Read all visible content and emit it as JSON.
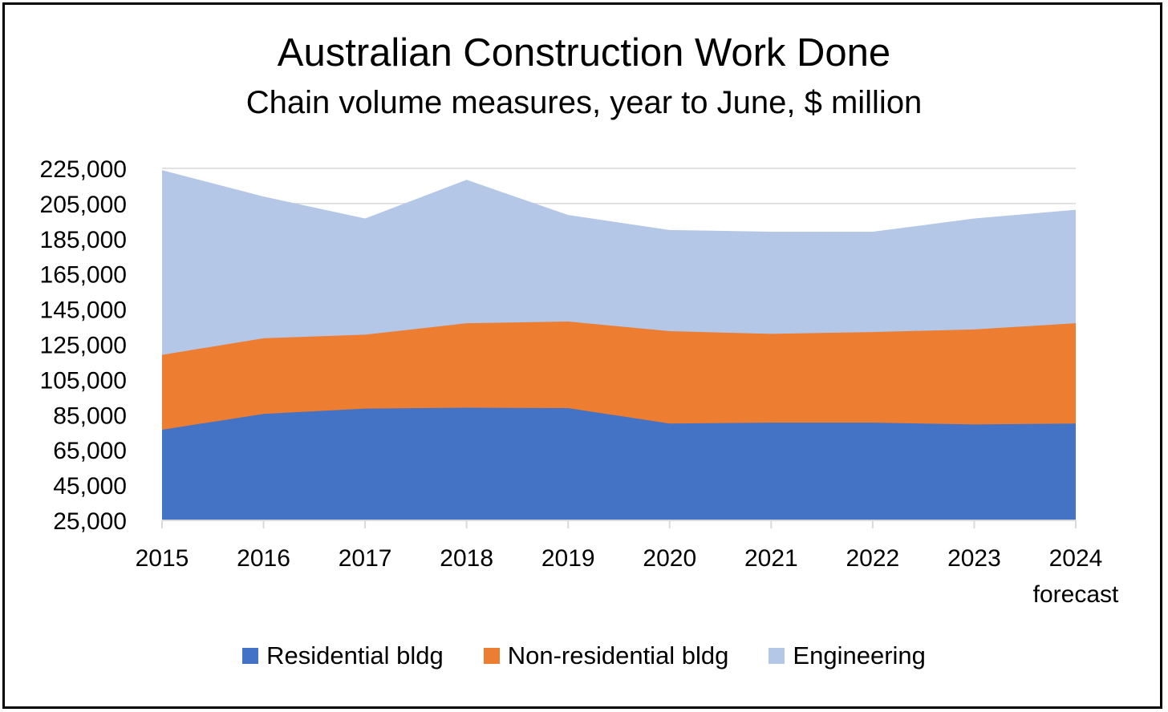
{
  "chart_data": {
    "type": "area",
    "stacked": true,
    "title": "Australian Construction Work Done",
    "subtitle": "Chain volume measures, year to June, $ million",
    "categories": [
      "2015",
      "2016",
      "2017",
      "2018",
      "2019",
      "2020",
      "2021",
      "2022",
      "2023",
      "2024"
    ],
    "category_sublabels": [
      "",
      "",
      "",
      "",
      "",
      "",
      "",
      "",
      "",
      "forecast"
    ],
    "y_ticks": [
      "25,000",
      "45,000",
      "65,000",
      "85,000",
      "105,000",
      "125,000",
      "145,000",
      "165,000",
      "185,000",
      "205,000",
      "225,000"
    ],
    "ylim": [
      25000,
      225000
    ],
    "grid": true,
    "legend_position": "bottom",
    "series": [
      {
        "name": "Residential bldg",
        "color": "#4472c4",
        "values": [
          76500,
          85500,
          88500,
          89000,
          88800,
          80000,
          80500,
          80500,
          79500,
          80000
        ]
      },
      {
        "name": "Non-residential bldg",
        "color": "#ed7d31",
        "values": [
          119000,
          128500,
          130500,
          137000,
          138000,
          132500,
          131000,
          132000,
          133500,
          137000
        ]
      },
      {
        "name": "Engineering",
        "color": "#b4c7e7",
        "values": [
          224000,
          209000,
          196500,
          218500,
          198500,
          190000,
          189000,
          189000,
          196500,
          201500
        ]
      }
    ]
  }
}
